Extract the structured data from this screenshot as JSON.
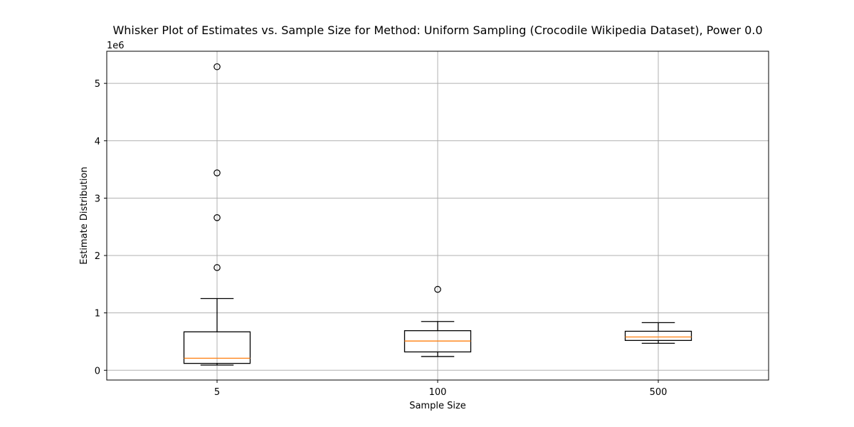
{
  "chart_data": {
    "type": "box",
    "title": "Whisker Plot of Estimates vs. Sample Size for Method: Uniform Sampling (Crocodile Wikipedia Dataset), Power 0.0",
    "xlabel": "Sample Size",
    "ylabel": "Estimate Distribution",
    "y_multiplier_label": "1e6",
    "y_unit": 1000000,
    "ylim": [
      -170000,
      5560000
    ],
    "yticks": [
      0,
      1000000,
      2000000,
      3000000,
      4000000,
      5000000
    ],
    "ytick_labels": [
      "0",
      "1",
      "2",
      "3",
      "4",
      "5"
    ],
    "grid": true,
    "categories": [
      "5",
      "100",
      "500"
    ],
    "boxes": [
      {
        "category": "5",
        "whisker_low": 90000,
        "q1": 120000,
        "median": 210000,
        "q3": 670000,
        "whisker_high": 1250000,
        "outliers": [
          1790000,
          2660000,
          3440000,
          5290000
        ]
      },
      {
        "category": "100",
        "whisker_low": 240000,
        "q1": 320000,
        "median": 510000,
        "q3": 690000,
        "whisker_high": 850000,
        "outliers": [
          1410000
        ]
      },
      {
        "category": "500",
        "whisker_low": 470000,
        "q1": 520000,
        "median": 580000,
        "q3": 680000,
        "whisker_high": 830000,
        "outliers": []
      }
    ],
    "colors": {
      "box": "#000000",
      "median": "#ff7f0e",
      "grid": "#b0b0b0"
    }
  }
}
